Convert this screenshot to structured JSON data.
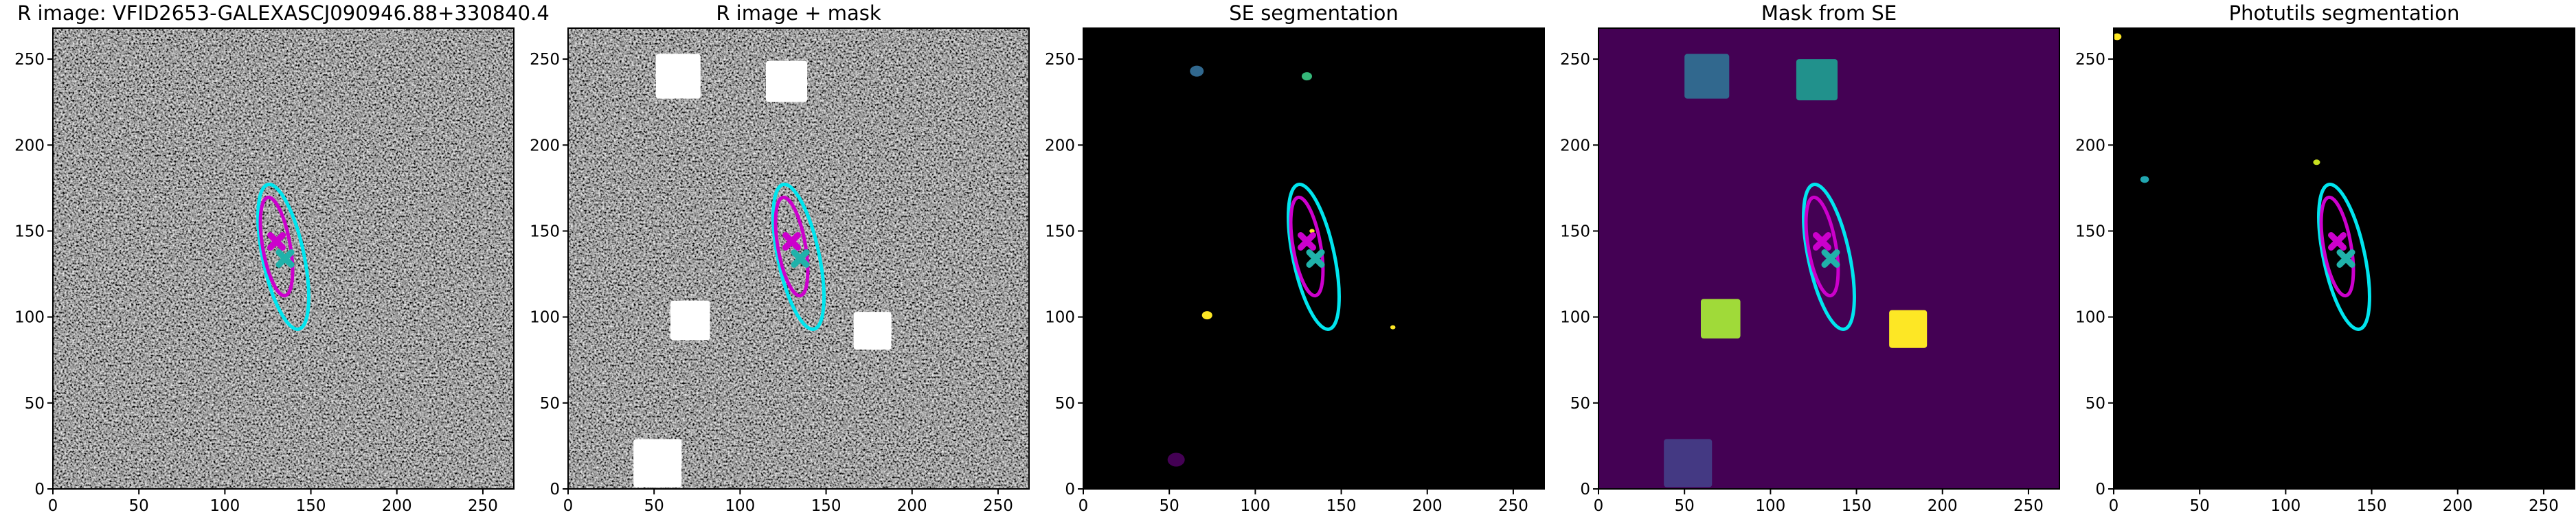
{
  "chart_data": [
    {
      "type": "image",
      "title": "R image: VFID2653-GALEXASCJ090946.88+330840.4",
      "background": "noise",
      "xlim": [
        0,
        268
      ],
      "ylim": [
        0,
        268
      ],
      "xticks": [
        0,
        50,
        100,
        150,
        200,
        250
      ],
      "yticks": [
        0,
        50,
        100,
        150,
        200,
        250
      ],
      "regions": [],
      "blobs": [],
      "ellipses": [
        {
          "x": 134,
          "y": 135,
          "a": 43,
          "b": 12,
          "angle": 102,
          "color": "#00e5ee"
        },
        {
          "x": 130,
          "y": 141,
          "a": 29,
          "b": 8,
          "angle": 100,
          "color": "#cc00cc"
        }
      ],
      "markers": [
        {
          "x": 130,
          "y": 144,
          "color": "#cc00cc"
        },
        {
          "x": 135,
          "y": 134,
          "color": "#20b2aa"
        }
      ]
    },
    {
      "type": "image",
      "title": "R image + mask",
      "background": "noise",
      "xlim": [
        0,
        268
      ],
      "ylim": [
        0,
        268
      ],
      "xticks": [
        0,
        50,
        100,
        150,
        200,
        250
      ],
      "yticks": [
        0,
        50,
        100,
        150,
        200,
        250
      ],
      "regions": [
        {
          "x": 64,
          "y": 240,
          "size": 26,
          "color": "#ffffff"
        },
        {
          "x": 127,
          "y": 237,
          "size": 24,
          "color": "#ffffff"
        },
        {
          "x": 71,
          "y": 98,
          "size": 23,
          "color": "#ffffff"
        },
        {
          "x": 177,
          "y": 92,
          "size": 22,
          "color": "#ffffff"
        },
        {
          "x": 52,
          "y": 15,
          "size": 28,
          "color": "#ffffff"
        }
      ],
      "blobs": [],
      "ellipses": [
        {
          "x": 134,
          "y": 135,
          "a": 43,
          "b": 12,
          "angle": 102,
          "color": "#00e5ee"
        },
        {
          "x": 130,
          "y": 141,
          "a": 29,
          "b": 8,
          "angle": 100,
          "color": "#cc00cc"
        }
      ],
      "markers": [
        {
          "x": 130,
          "y": 144,
          "color": "#cc00cc"
        },
        {
          "x": 135,
          "y": 134,
          "color": "#20b2aa"
        }
      ]
    },
    {
      "type": "image",
      "title": "SE segmentation",
      "background": "#000000",
      "xlim": [
        0,
        268
      ],
      "ylim": [
        0,
        268
      ],
      "xticks": [
        0,
        50,
        100,
        150,
        200,
        250
      ],
      "yticks": [
        0,
        50,
        100,
        150,
        200,
        250
      ],
      "regions": [],
      "blobs": [
        {
          "x": 66,
          "y": 243,
          "size": 4,
          "color": "#31688e"
        },
        {
          "x": 130,
          "y": 240,
          "size": 3,
          "color": "#35b779"
        },
        {
          "x": 72,
          "y": 101,
          "size": 3,
          "color": "#fde725"
        },
        {
          "x": 180,
          "y": 94,
          "size": 1.5,
          "color": "#fde725"
        },
        {
          "x": 54,
          "y": 17,
          "size": 5,
          "color": "#440154"
        },
        {
          "x": 133,
          "y": 150,
          "size": 1.5,
          "color": "#fde725"
        }
      ],
      "ellipses": [
        {
          "x": 134,
          "y": 135,
          "a": 43,
          "b": 12,
          "angle": 102,
          "color": "#00e5ee"
        },
        {
          "x": 130,
          "y": 141,
          "a": 29,
          "b": 8,
          "angle": 100,
          "color": "#cc00cc"
        }
      ],
      "markers": [
        {
          "x": 130,
          "y": 144,
          "color": "#cc00cc"
        },
        {
          "x": 135,
          "y": 134,
          "color": "#20b2aa"
        }
      ]
    },
    {
      "type": "image",
      "title": "Mask from SE",
      "background": "#440154",
      "xlim": [
        0,
        268
      ],
      "ylim": [
        0,
        268
      ],
      "xticks": [
        0,
        50,
        100,
        150,
        200,
        250
      ],
      "yticks": [
        0,
        50,
        100,
        150,
        200,
        250
      ],
      "regions": [
        {
          "x": 63,
          "y": 240,
          "size": 26,
          "color": "#31688e"
        },
        {
          "x": 127,
          "y": 238,
          "size": 24,
          "color": "#21918c"
        },
        {
          "x": 71,
          "y": 99,
          "size": 23,
          "color": "#a0da39"
        },
        {
          "x": 180,
          "y": 93,
          "size": 22,
          "color": "#fde725"
        },
        {
          "x": 52,
          "y": 15,
          "size": 28,
          "color": "#443983"
        }
      ],
      "blobs": [],
      "ellipses": [
        {
          "x": 134,
          "y": 135,
          "a": 43,
          "b": 12,
          "angle": 102,
          "color": "#00e5ee"
        },
        {
          "x": 130,
          "y": 141,
          "a": 29,
          "b": 8,
          "angle": 100,
          "color": "#cc00cc"
        }
      ],
      "markers": [
        {
          "x": 130,
          "y": 144,
          "color": "#cc00cc"
        },
        {
          "x": 135,
          "y": 134,
          "color": "#20b2aa"
        }
      ]
    },
    {
      "type": "image",
      "title": "Photutils segmentation",
      "background": "#000000",
      "xlim": [
        0,
        268
      ],
      "ylim": [
        0,
        268
      ],
      "xticks": [
        0,
        50,
        100,
        150,
        200,
        250
      ],
      "yticks": [
        0,
        50,
        100,
        150,
        200,
        250
      ],
      "regions": [],
      "blobs": [
        {
          "x": 2,
          "y": 263,
          "size": 2.5,
          "color": "#fde725"
        },
        {
          "x": 18,
          "y": 180,
          "size": 2.5,
          "color": "#21a6b0"
        },
        {
          "x": 118,
          "y": 190,
          "size": 2,
          "color": "#c8e020"
        }
      ],
      "ellipses": [
        {
          "x": 134,
          "y": 135,
          "a": 43,
          "b": 12,
          "angle": 102,
          "color": "#00e5ee"
        },
        {
          "x": 130,
          "y": 141,
          "a": 29,
          "b": 8,
          "angle": 100,
          "color": "#cc00cc"
        }
      ],
      "markers": [
        {
          "x": 130,
          "y": 144,
          "color": "#cc00cc"
        },
        {
          "x": 135,
          "y": 134,
          "color": "#20b2aa"
        }
      ]
    }
  ]
}
